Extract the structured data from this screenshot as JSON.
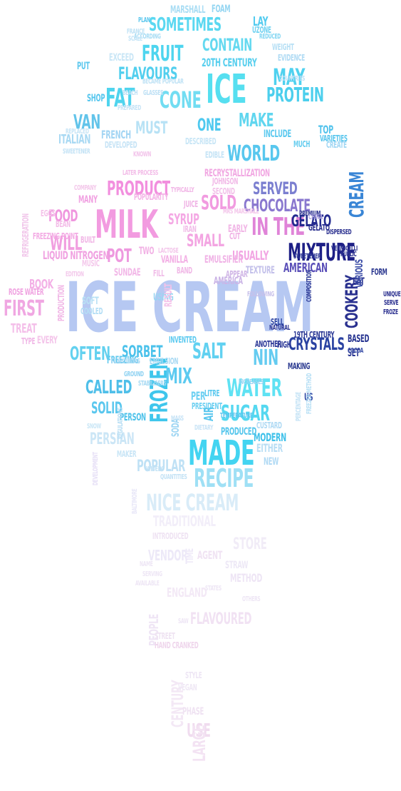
{
  "words": [
    {
      "text": "ICE CREAM",
      "color": "#b6c8f2"
    },
    {
      "text": "ICE",
      "color": "#56dff0"
    },
    {
      "text": "MILK",
      "color": "#f29be0"
    },
    {
      "text": "MADE",
      "color": "#43d4f1"
    },
    {
      "text": "MIXTURE",
      "color": "#1d1f86"
    },
    {
      "text": "RECIPE",
      "color": "#9fe0f5"
    },
    {
      "text": "WATER",
      "color": "#5fe2f3"
    },
    {
      "text": "SUGAR",
      "color": "#55d8f0"
    },
    {
      "text": "FROZEN",
      "color": "#3fc6ec"
    },
    {
      "text": "CREAM",
      "color": "#3a86d6"
    },
    {
      "text": "NICE CREAM",
      "color": "#d9ecf8"
    },
    {
      "text": "PRODUCT",
      "color": "#f28fde"
    },
    {
      "text": "FAT",
      "color": "#4fd4ee"
    },
    {
      "text": "CONE",
      "color": "#72ddf2"
    },
    {
      "text": "FRUIT",
      "color": "#4ed5ef"
    },
    {
      "text": "CONTAIN",
      "color": "#64d9f0"
    },
    {
      "text": "SOMETIMES",
      "color": "#5bd8f1"
    },
    {
      "text": "FLAVOURS",
      "color": "#52cfee"
    },
    {
      "text": "PROTEIN",
      "color": "#4ccfed"
    },
    {
      "text": "MAY",
      "color": "#4fd1ef"
    },
    {
      "text": "MAKE",
      "color": "#60d6ef"
    },
    {
      "text": "WORLD",
      "color": "#58c7ee"
    },
    {
      "text": "SERVED",
      "color": "#7b7fd0"
    },
    {
      "text": "CHOCOLATE",
      "color": "#8a78cf"
    },
    {
      "text": "SOLD",
      "color": "#f19be0"
    },
    {
      "text": "SMALL",
      "color": "#f3a5e2"
    },
    {
      "text": "IN THE",
      "color": "#e084d8"
    },
    {
      "text": "GELATO",
      "color": "#232a8f"
    },
    {
      "text": "AMERICAN",
      "color": "#5a4fb8"
    },
    {
      "text": "COOKERY",
      "color": "#2a318f"
    },
    {
      "text": "CRYSTALS",
      "color": "#2b43a2"
    },
    {
      "text": "NIN",
      "color": "#64cbf0"
    },
    {
      "text": "SALT",
      "color": "#61d1f1"
    },
    {
      "text": "SORBET",
      "color": "#4bc2eb"
    },
    {
      "text": "OFTEN",
      "color": "#63d1ef"
    },
    {
      "text": "FIRST",
      "color": "#f0a7e2"
    },
    {
      "text": "CALLED",
      "color": "#4fbfe9"
    },
    {
      "text": "MIX",
      "color": "#5ccaf0"
    },
    {
      "text": "SOLID",
      "color": "#5ac7ee"
    },
    {
      "text": "POPULAR",
      "color": "#bfe1f5"
    },
    {
      "text": "PERSIAN",
      "color": "#cce6f6"
    },
    {
      "text": "FOOD",
      "color": "#ef96de"
    },
    {
      "text": "WILL",
      "color": "#f19fe0"
    },
    {
      "text": "POT",
      "color": "#ee99df"
    },
    {
      "text": "BOOK",
      "color": "#f3b0e6"
    },
    {
      "text": "TREAT",
      "color": "#f4bfe9"
    },
    {
      "text": "ITALIAN",
      "color": "#a9d9f3"
    },
    {
      "text": "FRENCH",
      "color": "#a3d5f3"
    },
    {
      "text": "VAN",
      "color": "#62c4ea"
    },
    {
      "text": "MUST",
      "color": "#b8e2f5"
    },
    {
      "text": "ONE",
      "color": "#4fc9ef"
    },
    {
      "text": "20TH CENTURY",
      "color": "#58cfee"
    },
    {
      "text": "USUALLY",
      "color": "#f2a5e3"
    },
    {
      "text": "SYRUP",
      "color": "#f4a8e4"
    },
    {
      "text": "EMULSIFIER",
      "color": "#f0b2e6"
    },
    {
      "text": "SUNDAE",
      "color": "#f2b7e7"
    },
    {
      "text": "LIQUID NITROGEN",
      "color": "#f0a1e1"
    },
    {
      "text": "FREEZING POINT",
      "color": "#f3abe4"
    },
    {
      "text": "POPULARITY",
      "color": "#f3b4e6"
    },
    {
      "text": "STORE",
      "color": "#f1ecf7"
    },
    {
      "text": "VENDOR",
      "color": "#ede9f8"
    },
    {
      "text": "TRADITIONAL",
      "color": "#f2eef9"
    },
    {
      "text": "FLAVOURED",
      "color": "#f1e2f3"
    },
    {
      "text": "ENGLAND",
      "color": "#f3e9f6"
    },
    {
      "text": "USE",
      "color": "#f0dcef"
    },
    {
      "text": "LARGE",
      "color": "#f3e3f3"
    },
    {
      "text": "CENTURY",
      "color": "#f3e8f5"
    },
    {
      "text": "PEOPLE",
      "color": "#efe5f5"
    },
    {
      "text": "HAND CRANKED",
      "color": "#efd6ec"
    },
    {
      "text": "PHASE",
      "color": "#efe2f2"
    },
    {
      "text": "TIME",
      "color": "#eee9f8"
    },
    {
      "text": "AGENT",
      "color": "#f0e3f3"
    },
    {
      "text": "METHOD",
      "color": "#eee5f5"
    },
    {
      "text": "STRAW",
      "color": "#ede8f6"
    },
    {
      "text": "MARSHALL",
      "color": "#a9ddf4"
    },
    {
      "text": "FOAM",
      "color": "#95d6f2"
    },
    {
      "text": "ACCORDING",
      "color": "#a7dcf4"
    },
    {
      "text": "EXCEED",
      "color": "#c9e6f6"
    },
    {
      "text": "SCALE",
      "color": "#c4e4f6"
    },
    {
      "text": "WEIGHT",
      "color": "#b8e0f5"
    },
    {
      "text": "EVIDENCE",
      "color": "#b0dbf4"
    },
    {
      "text": "BECAME POPULAR",
      "color": "#bfe2f5"
    },
    {
      "text": "SWEETENER",
      "color": "#c2e2f5"
    },
    {
      "text": "DESCRIBED",
      "color": "#c8e6f6"
    },
    {
      "text": "RECRYSTALLIZATION",
      "color": "#f1a7e2"
    },
    {
      "text": "LATER PROCESS",
      "color": "#f3bde8"
    },
    {
      "text": "JOHNSON",
      "color": "#f1b9e7"
    },
    {
      "text": "TYPICALLY",
      "color": "#f1b5e6"
    },
    {
      "text": "KNOWN",
      "color": "#f2c3ea"
    },
    {
      "text": "COMPANY",
      "color": "#f3c7ea"
    },
    {
      "text": "MANY",
      "color": "#f1a2e2"
    },
    {
      "text": "JUICE",
      "color": "#f0b5e6"
    },
    {
      "text": "VANILLA",
      "color": "#f3b0e5"
    },
    {
      "text": "USING",
      "color": "#9ad6f2"
    },
    {
      "text": "SOFT",
      "color": "#b9e1f5"
    },
    {
      "text": "COOLED",
      "color": "#b4def5"
    },
    {
      "text": "INVENTED",
      "color": "#5ecbf0"
    },
    {
      "text": "FREEZING",
      "color": "#62c9ee"
    },
    {
      "text": "PERSON",
      "color": "#4dc2ea"
    },
    {
      "text": "MAKER",
      "color": "#c8e5f6"
    },
    {
      "text": "MODERN",
      "color": "#3fc1ea"
    },
    {
      "text": "PRODUCED",
      "color": "#54c6ec"
    },
    {
      "text": "PRESIDENT",
      "color": "#6ed0f1"
    },
    {
      "text": "LITRE",
      "color": "#5bc9ef"
    },
    {
      "text": "PER",
      "color": "#6cd0f2"
    },
    {
      "text": "SODA",
      "color": "#9fd6f3"
    },
    {
      "text": "AIR",
      "color": "#59c6ee"
    },
    {
      "text": "EITHER",
      "color": "#b9def4"
    },
    {
      "text": "NEW",
      "color": "#b1daf4"
    },
    {
      "text": "US",
      "color": "#2b43a2"
    },
    {
      "text": "SELL",
      "color": "#2b43a2"
    },
    {
      "text": "MAKING",
      "color": "#29388f"
    },
    {
      "text": "SET",
      "color": "#2d3993"
    },
    {
      "text": "BASED",
      "color": "#263390"
    },
    {
      "text": "COCOA",
      "color": "#3b4fa8"
    },
    {
      "text": "EAT",
      "color": "#27308e"
    },
    {
      "text": "FORM",
      "color": "#2b378f"
    },
    {
      "text": "VARIOUS",
      "color": "#3e4fa8"
    },
    {
      "text": "COMPOSITION",
      "color": "#2d3a96"
    },
    {
      "text": "TEXTURE",
      "color": "#c3c0ea"
    },
    {
      "text": "APPEAR",
      "color": "#d0b6e6"
    },
    {
      "text": "AMERICA",
      "color": "#cbb4e6"
    },
    {
      "text": "EARLY",
      "color": "#f1b6e6"
    },
    {
      "text": "CUT",
      "color": "#f0b0e5"
    },
    {
      "text": "MRS MARSHALL",
      "color": "#f3c5ea"
    },
    {
      "text": "ANOTHER",
      "color": "#2c3897"
    },
    {
      "text": "HIGH",
      "color": "#2c3897"
    },
    {
      "text": "TOP",
      "color": "#53c3ec"
    },
    {
      "text": "VARIETIES",
      "color": "#5ac6ed"
    },
    {
      "text": "CREATE",
      "color": "#9fd6f3"
    },
    {
      "text": "INCLUDE",
      "color": "#5bc9ef"
    },
    {
      "text": "MUCH",
      "color": "#66cdef"
    },
    {
      "text": "SHOP",
      "color": "#55c6ee"
    },
    {
      "text": "PUT",
      "color": "#5ec8ee"
    },
    {
      "text": "PLAN",
      "color": "#5ec8ee"
    },
    {
      "text": "FRANCE",
      "color": "#bfe2f5"
    },
    {
      "text": "LAY",
      "color": "#52cbef"
    },
    {
      "text": "UZONE",
      "color": "#71d2f1"
    },
    {
      "text": "REDUCED",
      "color": "#83d6f2"
    },
    {
      "text": "INTRODUCED",
      "color": "#efe3f3"
    },
    {
      "text": "DEVELOPMENT",
      "color": "#e6dff6"
    },
    {
      "text": "BALTIMORE",
      "color": "#e8e7f8"
    },
    {
      "text": "STYLE",
      "color": "#eee6f5"
    },
    {
      "text": "VEGAN",
      "color": "#efe8f5"
    },
    {
      "text": "STREET",
      "color": "#efe3f2"
    },
    {
      "text": "GELATO",
      "color": "#2a2f8f"
    },
    {
      "text": "PREMIUM",
      "color": "#2a2f8f"
    },
    {
      "text": "TEMPERATURE",
      "color": "#59c5ee"
    },
    {
      "text": "CUSTARD",
      "color": "#b0daf4"
    },
    {
      "text": "FREEZER METHOD",
      "color": "#b8e0f5"
    },
    {
      "text": "PERCENTAGE",
      "color": "#c3e2f5"
    },
    {
      "text": "MASS",
      "color": "#c6e3f6"
    },
    {
      "text": "DIETARY",
      "color": "#c9e4f6"
    },
    {
      "text": "REGULATIONS",
      "color": "#b8def4"
    },
    {
      "text": "SNOW",
      "color": "#c9e6f6"
    },
    {
      "text": "GROUND",
      "color": "#8ed2f2"
    },
    {
      "text": "ROSE WATER",
      "color": "#f0a3e1"
    },
    {
      "text": "EVERY",
      "color": "#f4c5ea"
    },
    {
      "text": "TYPE",
      "color": "#f0b7e6"
    },
    {
      "text": "PRODUCTION",
      "color": "#f1b7e6"
    },
    {
      "text": "EGGS",
      "color": "#f4c2e9"
    },
    {
      "text": "BEAN",
      "color": "#f3bde8"
    },
    {
      "text": "BUILT",
      "color": "#f1b7e6"
    },
    {
      "text": "MUSIC",
      "color": "#f4c8eb"
    },
    {
      "text": "REFRIGERATION",
      "color": "#f1c6ea"
    },
    {
      "text": "EDITION",
      "color": "#f3c9eb"
    },
    {
      "text": "TWO",
      "color": "#f2b2e5"
    },
    {
      "text": "BAND",
      "color": "#f1b9e7"
    },
    {
      "text": "FILL",
      "color": "#f0bce8"
    },
    {
      "text": "RESULT",
      "color": "#f4c2e9"
    },
    {
      "text": "SECOND",
      "color": "#f2c1e9"
    },
    {
      "text": "EDIBLE",
      "color": "#c6e4f6"
    },
    {
      "text": "IRAN",
      "color": "#f1bce8"
    },
    {
      "text": "DEVELOPED",
      "color": "#c7e4f6"
    },
    {
      "text": "PREPARED",
      "color": "#c5e3f6"
    },
    {
      "text": "COUNTRIES",
      "color": "#b9dff5"
    },
    {
      "text": "BEACH",
      "color": "#bde0f5"
    },
    {
      "text": "GLASSES",
      "color": "#bde0f5"
    },
    {
      "text": "REPLACED",
      "color": "#c8e5f6"
    },
    {
      "text": "LACTOSE",
      "color": "#f3c5ea"
    },
    {
      "text": "DISPERSED",
      "color": "#2a2f8f"
    },
    {
      "text": "VERMICELLI",
      "color": "#2a2f8f"
    },
    {
      "text": "UNIQUE",
      "color": "#2a2f8f"
    },
    {
      "text": "FROZE",
      "color": "#2a2f8f"
    },
    {
      "text": "SERVE",
      "color": "#2a2f8f"
    },
    {
      "text": "PUBLIC",
      "color": "#2a2f8f"
    },
    {
      "text": "CHINA",
      "color": "#b1a7e2"
    },
    {
      "text": "INCREASES",
      "color": "#9ad4f2"
    },
    {
      "text": "STABILISERS",
      "color": "#a6d9f3"
    },
    {
      "text": "EMULSION",
      "color": "#a8d9f3"
    },
    {
      "text": "FLAVOURING",
      "color": "#a4d7f3"
    },
    {
      "text": "NATURAL",
      "color": "#2a3494"
    },
    {
      "text": "SWEETENER",
      "color": "#2a3494"
    },
    {
      "text": "FOLLOWING",
      "color": "#c7c0ea"
    },
    {
      "text": "19TH CENTURY",
      "color": "#2d3a96"
    },
    {
      "text": "WIDELY",
      "color": "#c3e2f5"
    },
    {
      "text": "QUANTITIES",
      "color": "#c3e2f5"
    },
    {
      "text": "NAME",
      "color": "#eee6f5"
    },
    {
      "text": "SERVING",
      "color": "#eee6f5"
    },
    {
      "text": "OTHERS",
      "color": "#eee6f5"
    },
    {
      "text": "SAW",
      "color": "#eee6f5"
    },
    {
      "text": "AVAILABLE",
      "color": "#eee6f5"
    },
    {
      "text": "STATES",
      "color": "#eee6f5"
    }
  ]
}
